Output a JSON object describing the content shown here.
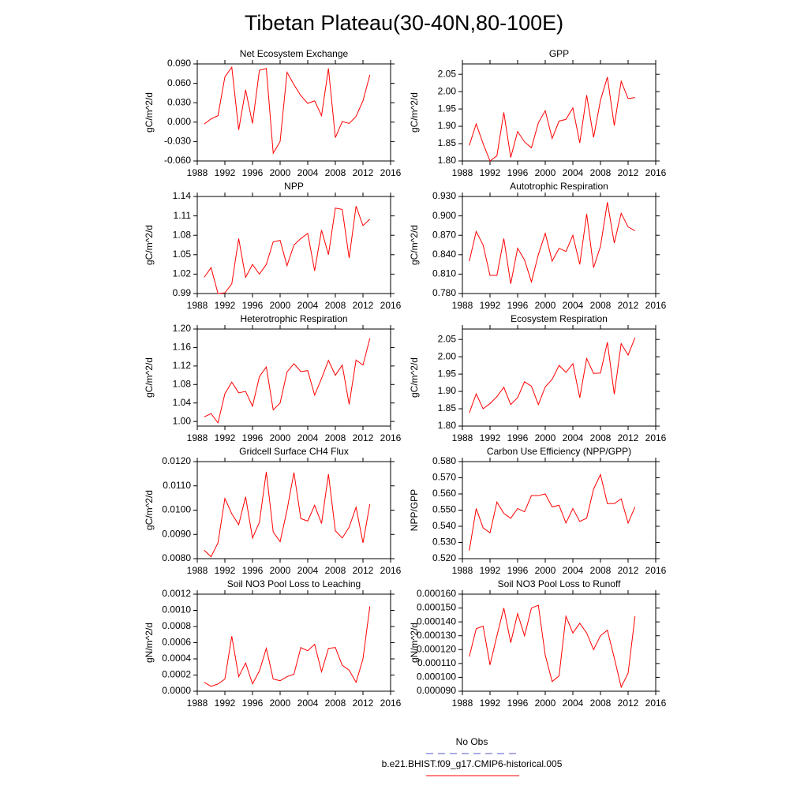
{
  "title": "Tibetan Plateau(30-40N,80-100E)",
  "chart_data": [
    {
      "type": "line",
      "title": "Net Ecosystem Exchange",
      "ylabel": "gC/m^2/d",
      "color": "#ff0000",
      "x": [
        1989,
        1990,
        1991,
        1992,
        1993,
        1994,
        1995,
        1996,
        1997,
        1998,
        1999,
        2000,
        2001,
        2002,
        2003,
        2004,
        2005,
        2006,
        2007,
        2008,
        2009,
        2010,
        2011,
        2012,
        2013
      ],
      "values": [
        -0.003,
        0.005,
        0.01,
        0.07,
        0.085,
        -0.012,
        0.05,
        -0.002,
        0.08,
        0.083,
        -0.048,
        -0.03,
        0.077,
        0.058,
        0.041,
        0.029,
        0.033,
        0.01,
        0.083,
        -0.024,
        0.001,
        -0.002,
        0.009,
        0.033,
        0.073
      ],
      "xlim": [
        1988,
        2016
      ],
      "xticks": [
        1988,
        1992,
        1996,
        2000,
        2004,
        2008,
        2012,
        2016
      ],
      "ylim": [
        -0.06,
        0.09
      ],
      "yticks": [
        {
          "value": -0.06,
          "label": "-0.060"
        },
        {
          "value": -0.03,
          "label": "-0.030"
        },
        {
          "value": 0,
          "label": "0.000"
        },
        {
          "value": 0.03,
          "label": "0.030"
        },
        {
          "value": 0.06,
          "label": "0.060"
        },
        {
          "value": 0.09,
          "label": "0.090"
        }
      ]
    },
    {
      "type": "line",
      "title": "GPP",
      "ylabel": "gC/m^2/d",
      "color": "#ff0000",
      "x": [
        1989,
        1990,
        1991,
        1992,
        1993,
        1994,
        1995,
        1996,
        1997,
        1998,
        1999,
        2000,
        2001,
        2002,
        2003,
        2004,
        2005,
        2006,
        2007,
        2008,
        2009,
        2010,
        2011,
        2012,
        2013
      ],
      "values": [
        1.845,
        1.907,
        1.85,
        1.8,
        1.815,
        1.94,
        1.81,
        1.885,
        1.855,
        1.838,
        1.91,
        1.945,
        1.865,
        1.915,
        1.92,
        1.953,
        1.852,
        1.99,
        1.868,
        1.975,
        2.042,
        1.902,
        2.03,
        1.98,
        1.983
      ],
      "xlim": [
        1988,
        2016
      ],
      "xticks": [
        1988,
        1992,
        1996,
        2000,
        2004,
        2008,
        2012,
        2016
      ],
      "ylim": [
        1.8,
        2.08
      ],
      "yticks": [
        {
          "value": 1.8,
          "label": "1.80"
        },
        1.85,
        {
          "value": 1.9,
          "label": "1.90"
        },
        1.95,
        {
          "value": 2,
          "label": "2.00"
        },
        2.05
      ]
    },
    {
      "type": "line",
      "title": "NPP",
      "ylabel": "gC/m^2/d",
      "color": "#ff0000",
      "x": [
        1989,
        1990,
        1991,
        1992,
        1993,
        1994,
        1995,
        1996,
        1997,
        1998,
        1999,
        2000,
        2001,
        2002,
        2003,
        2004,
        2005,
        2006,
        2007,
        2008,
        2009,
        2010,
        2011,
        2012,
        2013
      ],
      "values": [
        1.015,
        1.03,
        0.99,
        0.991,
        1.005,
        1.075,
        1.015,
        1.035,
        1.02,
        1.035,
        1.07,
        1.072,
        1.033,
        1.065,
        1.075,
        1.083,
        1.025,
        1.088,
        1.05,
        1.122,
        1.12,
        1.045,
        1.125,
        1.095,
        1.105
      ],
      "xlim": [
        1988,
        2016
      ],
      "xticks": [
        1988,
        1992,
        1996,
        2000,
        2004,
        2008,
        2012,
        2016
      ],
      "ylim": [
        0.99,
        1.14
      ],
      "yticks": [
        0.99,
        1.02,
        1.05,
        1.08,
        1.11,
        1.14
      ]
    },
    {
      "type": "line",
      "title": "Autotrophic Respiration",
      "ylabel": "gC/m^2/d",
      "color": "#ff0000",
      "x": [
        1989,
        1990,
        1991,
        1992,
        1993,
        1994,
        1995,
        1996,
        1997,
        1998,
        1999,
        2000,
        2001,
        2002,
        2003,
        2004,
        2005,
        2006,
        2007,
        2008,
        2009,
        2010,
        2011,
        2012,
        2013
      ],
      "values": [
        0.83,
        0.876,
        0.855,
        0.808,
        0.808,
        0.865,
        0.795,
        0.85,
        0.832,
        0.798,
        0.84,
        0.873,
        0.83,
        0.85,
        0.845,
        0.87,
        0.825,
        0.903,
        0.82,
        0.853,
        0.921,
        0.858,
        0.904,
        0.883,
        0.877
      ],
      "xlim": [
        1988,
        2016
      ],
      "xticks": [
        1988,
        1992,
        1996,
        2000,
        2004,
        2008,
        2012,
        2016
      ],
      "ylim": [
        0.78,
        0.93
      ],
      "yticks": [
        {
          "value": 0.78,
          "label": "0.780"
        },
        {
          "value": 0.81,
          "label": "0.810"
        },
        {
          "value": 0.84,
          "label": "0.840"
        },
        {
          "value": 0.87,
          "label": "0.870"
        },
        {
          "value": 0.9,
          "label": "0.900"
        },
        {
          "value": 0.93,
          "label": "0.930"
        }
      ]
    },
    {
      "type": "line",
      "title": "Heterotrophic Respiration",
      "ylabel": "gC/m^2/d",
      "color": "#ff0000",
      "x": [
        1989,
        1990,
        1991,
        1992,
        1993,
        1994,
        1995,
        1996,
        1997,
        1998,
        1999,
        2000,
        2001,
        2002,
        2003,
        2004,
        2005,
        2006,
        2007,
        2008,
        2009,
        2010,
        2011,
        2012,
        2013
      ],
      "values": [
        1.01,
        1.017,
        0.997,
        1.06,
        1.085,
        1.062,
        1.065,
        1.033,
        1.097,
        1.118,
        1.025,
        1.04,
        1.107,
        1.125,
        1.108,
        1.11,
        1.057,
        1.093,
        1.132,
        1.1,
        1.122,
        1.037,
        1.133,
        1.122,
        1.18
      ],
      "xlim": [
        1988,
        2016
      ],
      "xticks": [
        1988,
        1992,
        1996,
        2000,
        2004,
        2008,
        2012,
        2016
      ],
      "ylim": [
        0.99,
        1.2
      ],
      "yticks": [
        {
          "value": 1,
          "label": "1.00"
        },
        1.04,
        1.08,
        1.12,
        1.16,
        {
          "value": 1.2,
          "label": "1.20"
        }
      ]
    },
    {
      "type": "line",
      "title": "Ecosystem Respiration",
      "ylabel": "gC/m^2/d",
      "color": "#ff0000",
      "x": [
        1989,
        1990,
        1991,
        1992,
        1993,
        1994,
        1995,
        1996,
        1997,
        1998,
        1999,
        2000,
        2001,
        2002,
        2003,
        2004,
        2005,
        2006,
        2007,
        2008,
        2009,
        2010,
        2011,
        2012,
        2013
      ],
      "values": [
        1.838,
        1.893,
        1.85,
        1.865,
        1.885,
        1.912,
        1.862,
        1.882,
        1.928,
        1.915,
        1.862,
        1.913,
        1.935,
        1.975,
        1.955,
        1.98,
        1.882,
        1.995,
        1.952,
        1.953,
        2.042,
        1.892,
        2.038,
        2.005,
        2.055
      ],
      "xlim": [
        1988,
        2016
      ],
      "xticks": [
        1988,
        1992,
        1996,
        2000,
        2004,
        2008,
        2012,
        2016
      ],
      "ylim": [
        1.8,
        2.08
      ],
      "yticks": [
        {
          "value": 1.8,
          "label": "1.80"
        },
        1.85,
        {
          "value": 1.9,
          "label": "1.90"
        },
        1.95,
        {
          "value": 2,
          "label": "2.00"
        },
        2.05
      ]
    },
    {
      "type": "line",
      "title": "Gridcell Surface CH4 Flux",
      "ylabel": "gC/m^2/d",
      "color": "#ff0000",
      "x": [
        1989,
        1990,
        1991,
        1992,
        1993,
        1994,
        1995,
        1996,
        1997,
        1998,
        1999,
        2000,
        2001,
        2002,
        2003,
        2004,
        2005,
        2006,
        2007,
        2008,
        2009,
        2010,
        2011,
        2012,
        2013
      ],
      "values": [
        0.00835,
        0.00808,
        0.00865,
        0.01048,
        0.00985,
        0.0094,
        0.01055,
        0.00885,
        0.0095,
        0.01158,
        0.0091,
        0.0087,
        0.01,
        0.01155,
        0.00965,
        0.00955,
        0.0102,
        0.00945,
        0.01148,
        0.00915,
        0.00885,
        0.0093,
        0.01012,
        0.00865,
        0.01025
      ],
      "xlim": [
        1988,
        2016
      ],
      "xticks": [
        1988,
        1992,
        1996,
        2000,
        2004,
        2008,
        2012,
        2016
      ],
      "ylim": [
        0.008,
        0.012
      ],
      "yticks": [
        {
          "value": 0.008,
          "label": "0.0080"
        },
        {
          "value": 0.009,
          "label": "0.0090"
        },
        {
          "value": 0.01,
          "label": "0.0100"
        },
        {
          "value": 0.011,
          "label": "0.0110"
        },
        {
          "value": 0.012,
          "label": "0.0120"
        }
      ]
    },
    {
      "type": "line",
      "title": "Carbon Use Efficiency (NPP/GPP)",
      "ylabel": "NPP/GPP",
      "color": "#ff0000",
      "x": [
        1989,
        1990,
        1991,
        1992,
        1993,
        1994,
        1995,
        1996,
        1997,
        1998,
        1999,
        2000,
        2001,
        2002,
        2003,
        2004,
        2005,
        2006,
        2007,
        2008,
        2009,
        2010,
        2011,
        2012,
        2013
      ],
      "values": [
        0.525,
        0.551,
        0.539,
        0.536,
        0.555,
        0.548,
        0.545,
        0.551,
        0.549,
        0.559,
        0.559,
        0.56,
        0.552,
        0.553,
        0.542,
        0.551,
        0.543,
        0.545,
        0.563,
        0.572,
        0.554,
        0.554,
        0.557,
        0.542,
        0.552
      ],
      "xlim": [
        1988,
        2016
      ],
      "xticks": [
        1988,
        1992,
        1996,
        2000,
        2004,
        2008,
        2012,
        2016
      ],
      "ylim": [
        0.52,
        0.58
      ],
      "yticks": [
        {
          "value": 0.52,
          "label": "0.520"
        },
        {
          "value": 0.53,
          "label": "0.530"
        },
        {
          "value": 0.54,
          "label": "0.540"
        },
        {
          "value": 0.55,
          "label": "0.550"
        },
        {
          "value": 0.56,
          "label": "0.560"
        },
        {
          "value": 0.57,
          "label": "0.570"
        },
        {
          "value": 0.58,
          "label": "0.580"
        }
      ]
    },
    {
      "type": "line",
      "title": "Soil NO3 Pool Loss to Leaching",
      "ylabel": "gN/m^2/d",
      "color": "#ff0000",
      "x": [
        1989,
        1990,
        1991,
        1992,
        1993,
        1994,
        1995,
        1996,
        1997,
        1998,
        1999,
        2000,
        2001,
        2002,
        2003,
        2004,
        2005,
        2006,
        2007,
        2008,
        2009,
        2010,
        2011,
        2012,
        2013
      ],
      "values": [
        0.00011,
        6e-05,
        9e-05,
        0.00015,
        0.00068,
        0.00018,
        0.00035,
        9e-05,
        0.00025,
        0.00053,
        0.00015,
        0.00013,
        0.00018,
        0.00021,
        0.00054,
        0.0005,
        0.00058,
        0.00024,
        0.00053,
        0.00054,
        0.00032,
        0.00026,
        0.00011,
        0.0004,
        0.00105
      ],
      "xlim": [
        1988,
        2016
      ],
      "xticks": [
        1988,
        1992,
        1996,
        2000,
        2004,
        2008,
        2012,
        2016
      ],
      "ylim": [
        0,
        0.0012
      ],
      "yticks": [
        {
          "value": 0,
          "label": "0.0000"
        },
        0.0002,
        0.0004,
        0.0006,
        0.0008,
        {
          "value": 0.001,
          "label": "0.0010"
        },
        0.0012
      ]
    },
    {
      "type": "line",
      "title": "Soil NO3 Pool Loss to Runoff",
      "ylabel": "gN/m^2/d",
      "color": "#ff0000",
      "x": [
        1989,
        1990,
        1991,
        1992,
        1993,
        1994,
        1995,
        1996,
        1997,
        1998,
        1999,
        2000,
        2001,
        2002,
        2003,
        2004,
        2005,
        2006,
        2007,
        2008,
        2009,
        2010,
        2011,
        2012,
        2013
      ],
      "values": [
        0.000115,
        0.000135,
        0.000137,
        0.000109,
        0.00013,
        0.00015,
        0.000125,
        0.000146,
        0.00013,
        0.00015,
        0.000152,
        0.000116,
        9.7e-05,
        0.000101,
        0.000144,
        0.000132,
        0.000139,
        0.000132,
        0.00012,
        0.00013,
        0.000134,
        0.000114,
        9.3e-05,
        0.000103,
        0.000144
      ],
      "xlim": [
        1988,
        2016
      ],
      "xticks": [
        1988,
        1992,
        1996,
        2000,
        2004,
        2008,
        2012,
        2016
      ],
      "ylim": [
        9e-05,
        0.00016
      ],
      "yticks": [
        {
          "value": 9e-05,
          "label": "0.000090"
        },
        {
          "value": 0.0001,
          "label": "0.000100"
        },
        {
          "value": 0.00011,
          "label": "0.000110"
        },
        {
          "value": 0.00012,
          "label": "0.000120"
        },
        {
          "value": 0.00013,
          "label": "0.000130"
        },
        {
          "value": 0.00014,
          "label": "0.000140"
        },
        {
          "value": 0.00015,
          "label": "0.000150"
        },
        {
          "value": 0.00016,
          "label": "0.000160"
        }
      ]
    }
  ],
  "legend": [
    {
      "name": "No Obs",
      "color": "#5555cc",
      "dash": true
    },
    {
      "name": "b.e21.BHIST.f09_g17.CMIP6-historical.005",
      "color": "#ff0000",
      "dash": false
    }
  ]
}
